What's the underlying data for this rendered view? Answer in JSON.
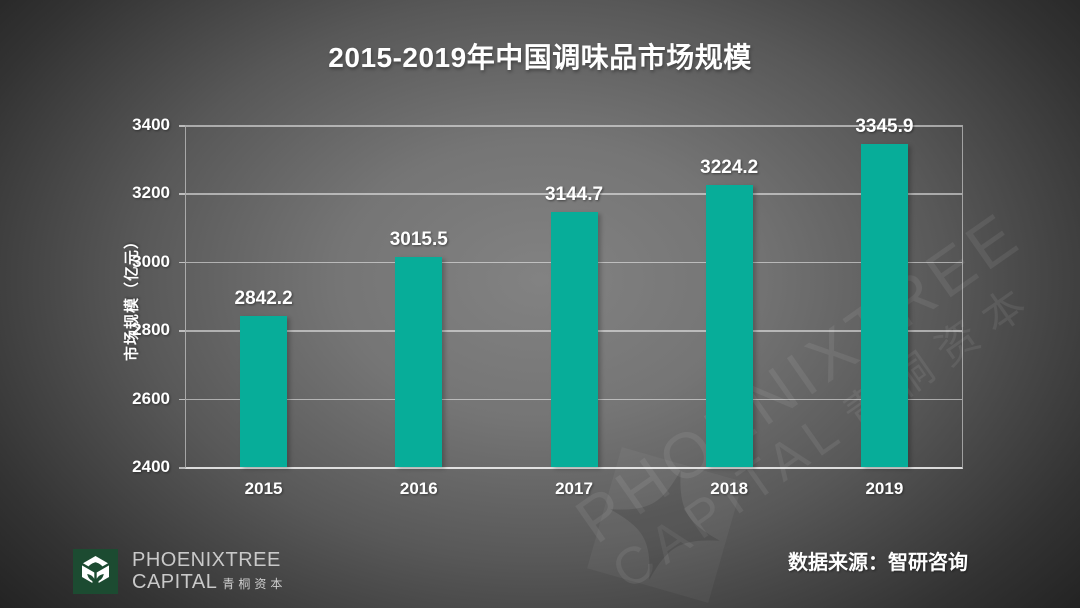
{
  "slide": {
    "title": "2015-2019年中国调味品市场规模",
    "source_note": "数据来源：智研咨询"
  },
  "chart_data": {
    "type": "bar",
    "title": "2015-2019年中国调味品市场规模",
    "categories": [
      "2015",
      "2016",
      "2017",
      "2018",
      "2019"
    ],
    "values": [
      2842.2,
      3015.5,
      3144.7,
      3224.2,
      3345.9
    ],
    "value_labels": [
      "2842.2",
      "3015.5",
      "3144.7",
      "3224.2",
      "3345.9"
    ],
    "xlabel": "",
    "ylabel": "市场规模（亿元）",
    "ylim": [
      2400,
      3400
    ],
    "yticks": [
      2400,
      2600,
      2800,
      3000,
      3200,
      3400
    ],
    "grid": true,
    "legend": false,
    "bar_color": "#07ad99"
  },
  "branding": {
    "logo_en_line1": "PHOENIXTREE",
    "logo_en_line2": "CAPITAL",
    "logo_cn": "青桐资本",
    "logo_green": "#1c4b31"
  },
  "watermark": {
    "line1": "PHOENIXTREE",
    "line2": "CAPITAL",
    "cn": "青桐资本"
  },
  "colors": {
    "bar": "#07ad99",
    "background_center": "#7e7e7e",
    "background_edge": "#1a1a1a",
    "gridline": "rgba(255,255,255,0.5)",
    "text": "#ffffff"
  }
}
